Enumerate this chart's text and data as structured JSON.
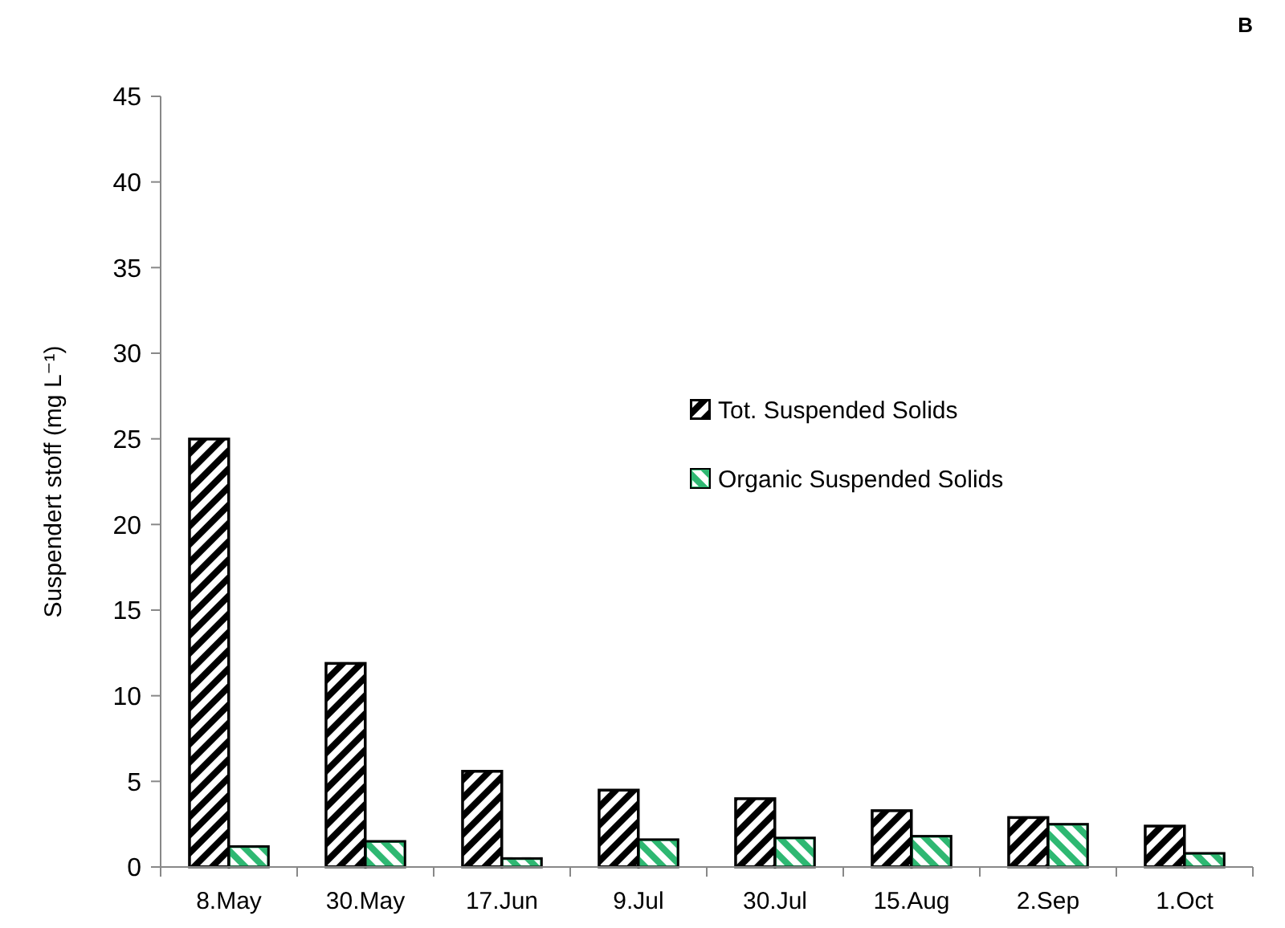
{
  "chart_data": {
    "type": "bar",
    "title": "B",
    "ylabel": "Suspendert stoff (mg L⁻¹)",
    "categories": [
      "8.May",
      "30.May",
      "17.Jun",
      "9.Jul",
      "30.Jul",
      "15.Aug",
      "2.Sep",
      "1.Oct"
    ],
    "series": [
      {
        "name": "Tot. Suspended Solids",
        "color": "#000000",
        "values": [
          25,
          11.9,
          5.6,
          4.5,
          4.0,
          3.3,
          2.9,
          2.4
        ]
      },
      {
        "name": "Organic Suspended Solids",
        "color": "#2eb872",
        "values": [
          1.2,
          1.5,
          0.5,
          1.6,
          1.7,
          1.8,
          2.5,
          0.8
        ]
      }
    ],
    "ylim": [
      0,
      45
    ],
    "yticks": [
      0,
      5,
      10,
      15,
      20,
      25,
      30,
      35,
      40,
      45
    ],
    "grid": false,
    "legend": "center"
  }
}
